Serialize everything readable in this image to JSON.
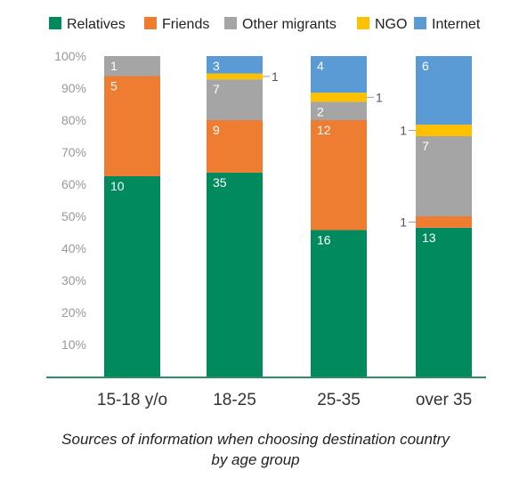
{
  "chart_data": {
    "type": "bar",
    "stacked": true,
    "normalized_percent": true,
    "categories": [
      "15-18 y/o",
      "18-25",
      "25-35",
      "over 35"
    ],
    "series": [
      {
        "name": "Relatives",
        "color": "#008A5E",
        "values": [
          10,
          35,
          16,
          13
        ]
      },
      {
        "name": "Friends",
        "color": "#EE7D31",
        "values": [
          5,
          9,
          12,
          1
        ]
      },
      {
        "name": "Other migrants",
        "color": "#A5A5A5",
        "values": [
          1,
          7,
          2,
          7
        ]
      },
      {
        "name": "NGO",
        "color": "#FFC000",
        "values": [
          0,
          1,
          1,
          1
        ]
      },
      {
        "name": "Internet",
        "color": "#5B9BD5",
        "values": [
          0,
          3,
          4,
          6
        ]
      }
    ],
    "y_ticks": [
      "10%",
      "20%",
      "30%",
      "40%",
      "50%",
      "60%",
      "70%",
      "80%",
      "90%",
      "100%"
    ],
    "ylim": [
      0,
      100
    ],
    "legend_position": "top",
    "grid": false
  },
  "caption": {
    "line1": "Sources of information when choosing destination country",
    "line2": "by age group"
  }
}
